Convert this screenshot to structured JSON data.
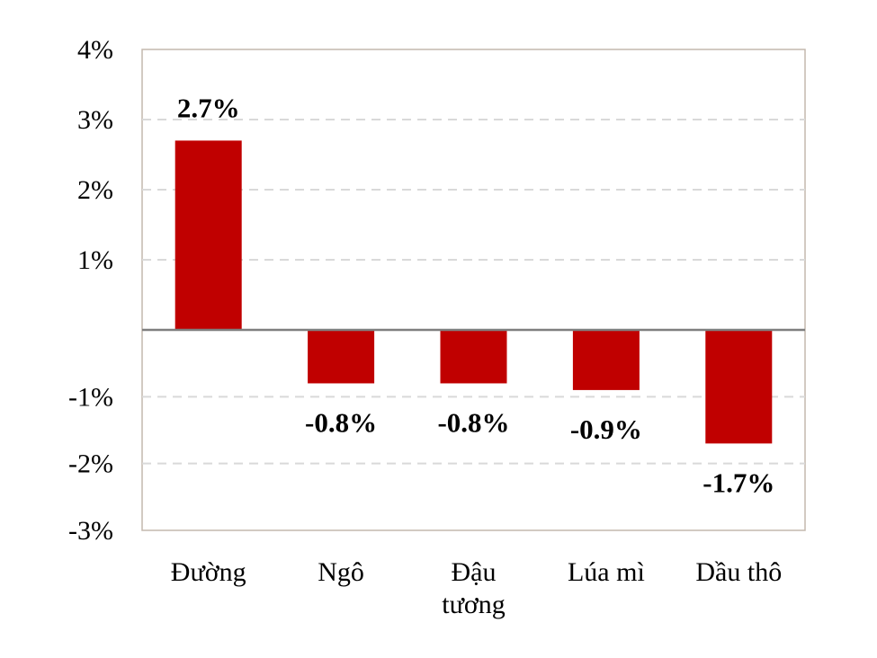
{
  "chart_data": {
    "type": "bar",
    "categories": [
      "Đường",
      "Ngô",
      "Đậu tương",
      "Lúa mì",
      "Dầu thô"
    ],
    "values": [
      2.7,
      -0.8,
      -0.8,
      -0.9,
      -1.7
    ],
    "data_labels": [
      "2.7%",
      "-0.8%",
      "-0.8%",
      "-0.9%",
      "-1.7%"
    ],
    "y_ticks": [
      4,
      3,
      2,
      1,
      -1,
      -2,
      -3
    ],
    "y_tick_labels": [
      "4%",
      "3%",
      "2%",
      "1%",
      "-1%",
      "-2%",
      "-3%"
    ],
    "ylim": [
      -3,
      4
    ],
    "title": "",
    "xlabel": "",
    "ylabel": "",
    "grid": true,
    "legend": "none",
    "bar_color": "#C00000"
  }
}
